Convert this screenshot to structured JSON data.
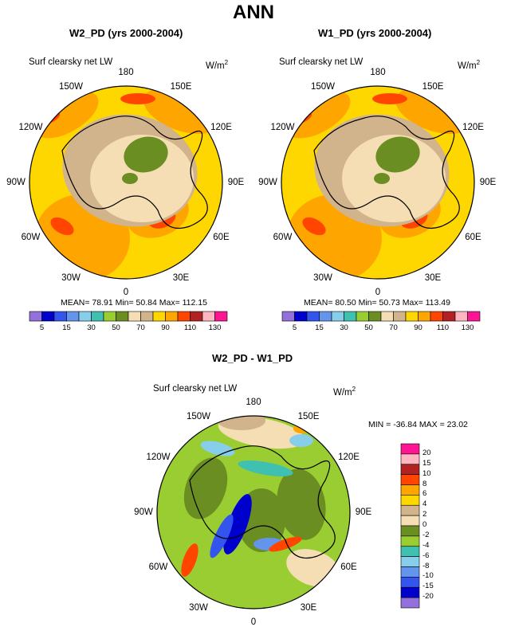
{
  "main_title": "ANN",
  "panels": [
    {
      "title": "W2_PD (yrs 2000-2004)",
      "var_label": "Surf clearsky net LW",
      "unit": "W/m",
      "unit_sup": "2",
      "stats": "MEAN=  78.91  Min=  50.84  Max= 112.15"
    },
    {
      "title": "W1_PD (yrs 2000-2004)",
      "var_label": "Surf clearsky net LW",
      "unit": "W/m",
      "unit_sup": "2",
      "stats": "MEAN=  80.50  Min=  50.73  Max= 113.49"
    },
    {
      "title": "W2_PD - W1_PD",
      "var_label": "Surf clearsky net LW",
      "unit": "W/m",
      "unit_sup": "2",
      "stats": "MIN = -36.84  MAX =  23.02"
    }
  ],
  "lon_labels": [
    "180",
    "150E",
    "120E",
    "90E",
    "60E",
    "30E",
    "0",
    "30W",
    "60W",
    "90W",
    "120W",
    "150W"
  ],
  "chart_data": [
    {
      "type": "heatmap",
      "projection": "north-polar-stereographic",
      "title": "W2_PD (yrs 2000-2004)",
      "variable": "Surf clearsky net LW",
      "units": "W/m2",
      "mean": 78.91,
      "min": 50.84,
      "max": 112.15,
      "colorbar": {
        "orientation": "horizontal",
        "levels": [
          5,
          10,
          15,
          20,
          30,
          40,
          50,
          60,
          70,
          80,
          90,
          100,
          110,
          120,
          130
        ],
        "tick_labels": [
          "5",
          "15",
          "30",
          "50",
          "70",
          "90",
          "110",
          "130"
        ],
        "colors": [
          "#9370db",
          "#0000cd",
          "#3355ee",
          "#6495ed",
          "#87ceeb",
          "#40c0b0",
          "#9acd32",
          "#6b8e23",
          "#f5deb3",
          "#d2b48c",
          "#ffd700",
          "#ffa500",
          "#ff4500",
          "#b22222",
          "#ffb6c1",
          "#ff1493"
        ]
      }
    },
    {
      "type": "heatmap",
      "projection": "north-polar-stereographic",
      "title": "W1_PD (yrs 2000-2004)",
      "variable": "Surf clearsky net LW",
      "units": "W/m2",
      "mean": 80.5,
      "min": 50.73,
      "max": 113.49,
      "colorbar": {
        "orientation": "horizontal",
        "levels": [
          5,
          10,
          15,
          20,
          30,
          40,
          50,
          60,
          70,
          80,
          90,
          100,
          110,
          120,
          130
        ],
        "tick_labels": [
          "5",
          "15",
          "30",
          "50",
          "70",
          "90",
          "110",
          "130"
        ],
        "colors": [
          "#9370db",
          "#0000cd",
          "#3355ee",
          "#6495ed",
          "#87ceeb",
          "#40c0b0",
          "#9acd32",
          "#6b8e23",
          "#f5deb3",
          "#d2b48c",
          "#ffd700",
          "#ffa500",
          "#ff4500",
          "#b22222",
          "#ffb6c1",
          "#ff1493"
        ]
      }
    },
    {
      "type": "heatmap",
      "projection": "north-polar-stereographic",
      "title": "W2_PD - W1_PD",
      "variable": "Surf clearsky net LW",
      "units": "W/m2",
      "min": -36.84,
      "max": 23.02,
      "colorbar": {
        "orientation": "vertical",
        "levels": [
          20,
          15,
          10,
          8,
          6,
          4,
          2,
          0,
          -2,
          -4,
          -6,
          -8,
          -10,
          -15,
          -20
        ],
        "tick_labels": [
          "20",
          "15",
          "10",
          "8",
          "6",
          "4",
          "2",
          "0",
          "-2",
          "-4",
          "-6",
          "-8",
          "-10",
          "-15",
          "-20"
        ],
        "colors": [
          "#ff1493",
          "#ffb6c1",
          "#b22222",
          "#ff4500",
          "#ffa500",
          "#ffd700",
          "#d2b48c",
          "#f5deb3",
          "#6b8e23",
          "#9acd32",
          "#40c0b0",
          "#87ceeb",
          "#6495ed",
          "#3355ee",
          "#0000cd",
          "#9370db"
        ]
      }
    }
  ]
}
